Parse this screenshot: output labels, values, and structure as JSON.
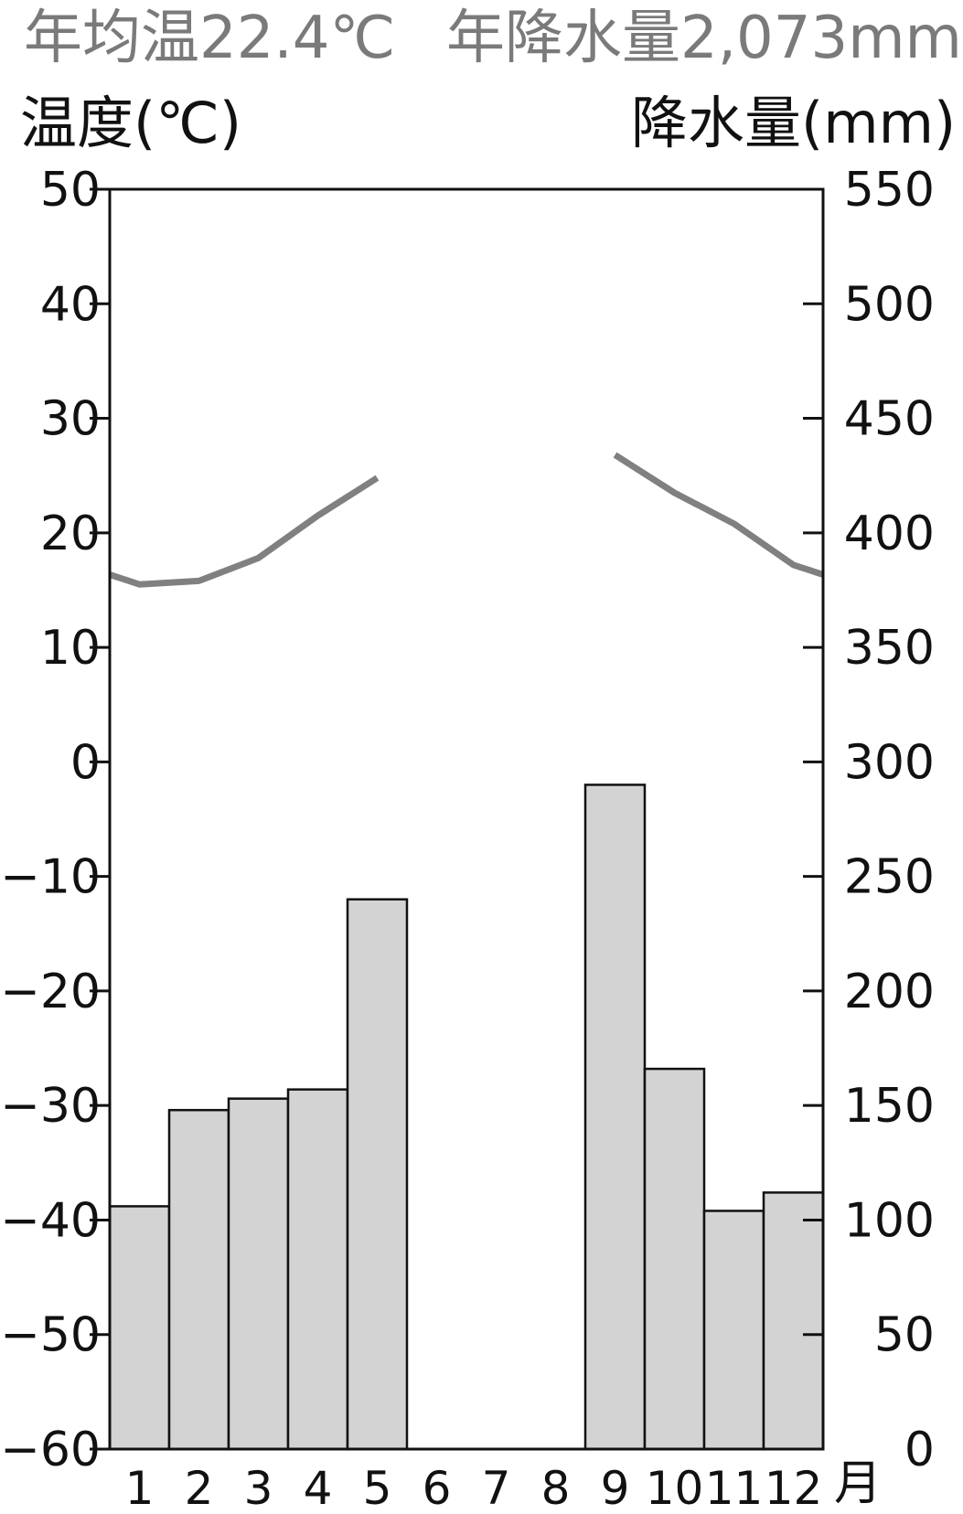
{
  "header": {
    "annual_temp": "年均温22.4℃",
    "annual_precip": "年降水量2,073mm",
    "temp_axis_label": "温度(℃)",
    "precip_axis_label": "降水量(mm)"
  },
  "chart_data": {
    "type": "bar+line",
    "x_unit_label": "月",
    "categories": [
      "1",
      "2",
      "3",
      "4",
      "5",
      "6",
      "7",
      "8",
      "9",
      "10",
      "11",
      "12"
    ],
    "temperature": {
      "axis": "left",
      "values": [
        15.5,
        15.8,
        17.8,
        21.5,
        24.8,
        null,
        null,
        null,
        26.8,
        23.5,
        20.8,
        17.2
      ],
      "ylim": [
        -60,
        50
      ],
      "ticks": [
        50,
        40,
        30,
        20,
        10,
        0,
        -10,
        -20,
        -30,
        -40,
        -50,
        -60
      ],
      "color": "#808080"
    },
    "precipitation": {
      "axis": "right",
      "values": [
        106,
        148,
        153,
        157,
        240,
        null,
        null,
        null,
        290,
        166,
        104,
        112
      ],
      "ylim": [
        0,
        550
      ],
      "ticks": [
        550,
        500,
        450,
        400,
        350,
        300,
        250,
        200,
        150,
        100,
        50,
        0
      ],
      "color": "#d3d3d3"
    }
  }
}
